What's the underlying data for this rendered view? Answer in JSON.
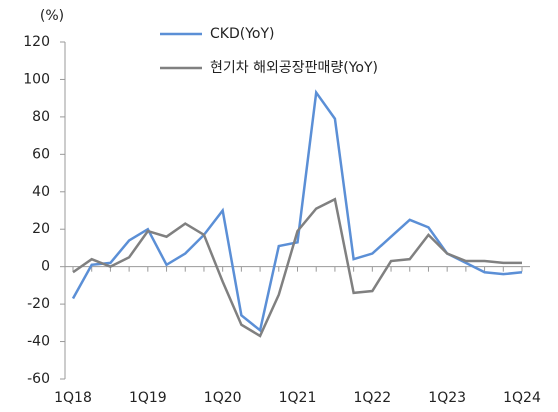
{
  "chart_data": {
    "type": "line",
    "ylabel": "(%)",
    "categories": [
      "1Q18",
      null,
      null,
      null,
      "1Q19",
      null,
      null,
      null,
      "1Q20",
      null,
      null,
      null,
      "1Q21",
      null,
      null,
      null,
      "1Q22",
      null,
      null,
      null,
      "1Q23",
      null,
      null,
      null,
      "1Q24"
    ],
    "series": [
      {
        "name": "CKD(YoY)",
        "color": "#5b8fd6",
        "values": [
          -17,
          1,
          2,
          14,
          20,
          1,
          7,
          17,
          30,
          -26,
          -34,
          11,
          13,
          93,
          79,
          4,
          7,
          16,
          25,
          21,
          7,
          2,
          -3,
          -4,
          -3
        ]
      },
      {
        "name": "현기차 해외공장판매량(YoY)",
        "color": "#808080",
        "values": [
          -3,
          4,
          0,
          5,
          19,
          16,
          23,
          17,
          -8,
          -31,
          -37,
          -15,
          19,
          31,
          36,
          -14,
          -13,
          3,
          4,
          17,
          7,
          3,
          3,
          2,
          2
        ]
      }
    ],
    "ylim": [
      -60,
      120
    ],
    "yticks": [
      -60,
      -40,
      -20,
      0,
      20,
      40,
      60,
      80,
      100,
      120
    ],
    "grid": false,
    "legend": "top"
  }
}
